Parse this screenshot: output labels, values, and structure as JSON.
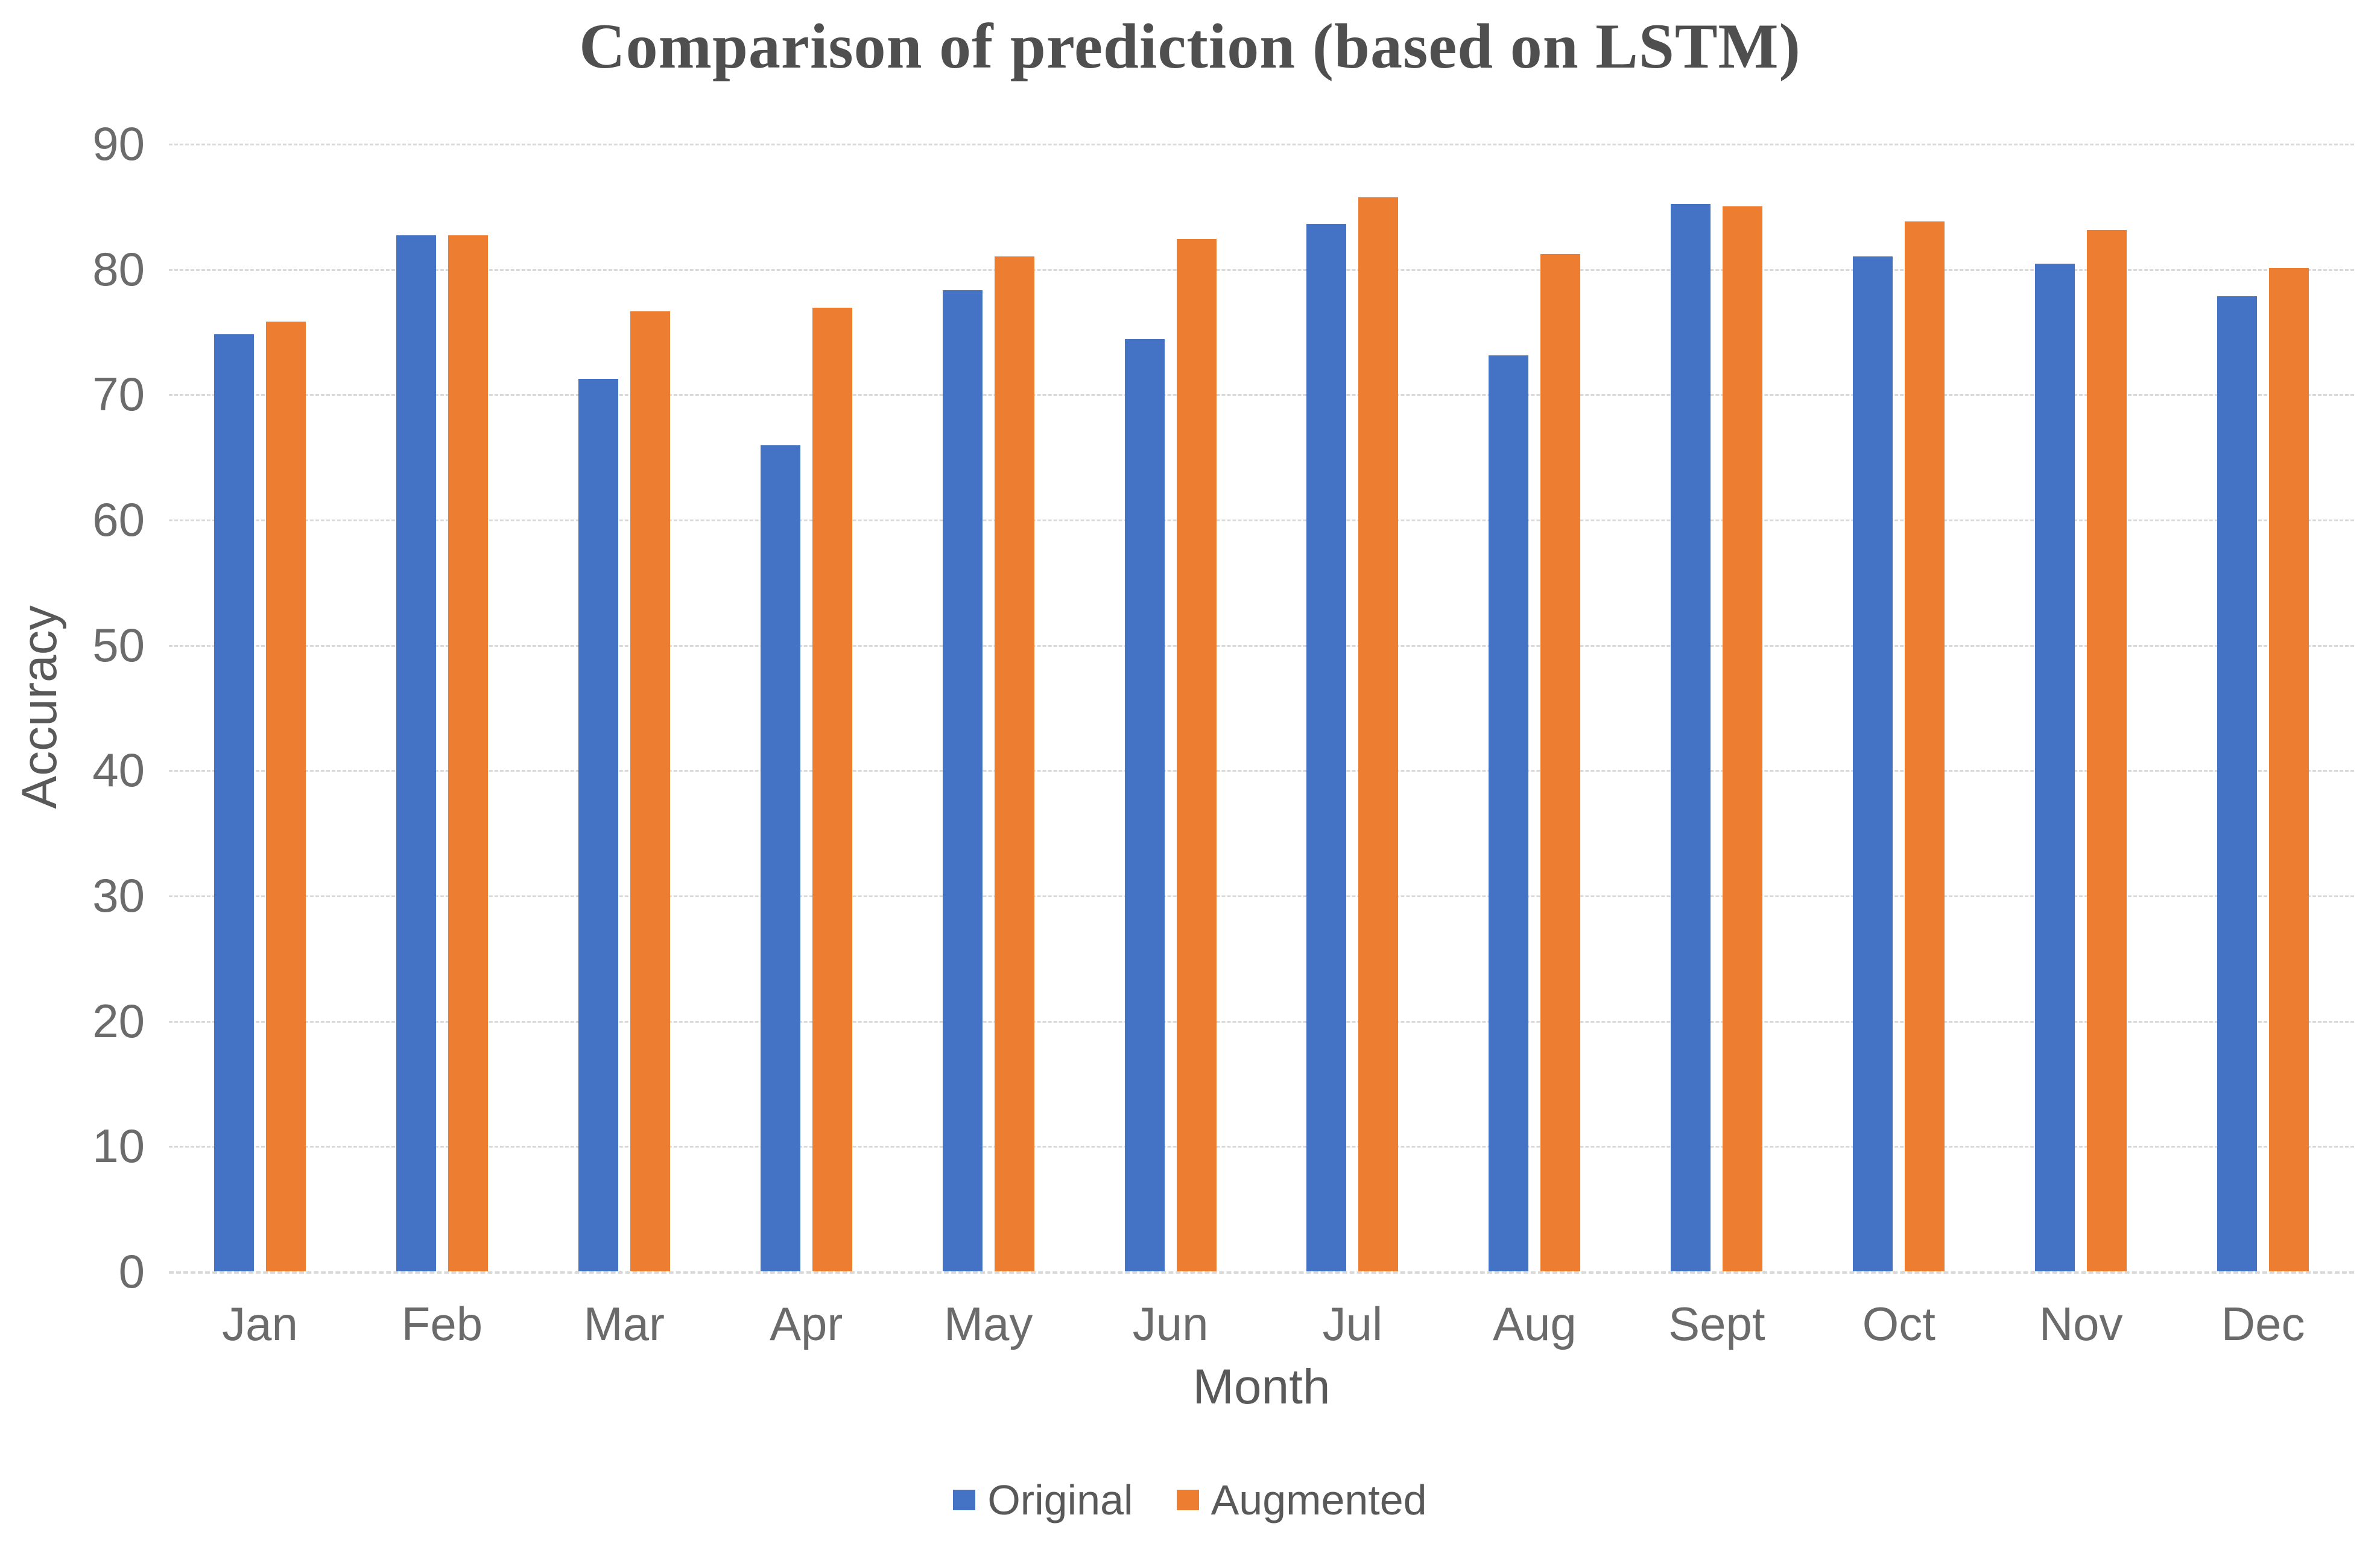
{
  "chart_data": {
    "type": "bar",
    "title": "Comparison of prediction (based on LSTM)",
    "xlabel": "Month",
    "ylabel": "Accuracy",
    "categories": [
      "Jan",
      "Feb",
      "Mar",
      "Apr",
      "May",
      "Jun",
      "Jul",
      "Aug",
      "Sept",
      "Oct",
      "Nov",
      "Dec"
    ],
    "series": [
      {
        "name": "Original",
        "color": "#4472C4",
        "values": [
          74.8,
          82.7,
          71.2,
          65.9,
          78.3,
          74.4,
          83.6,
          73.1,
          85.2,
          81.0,
          80.4,
          77.8
        ]
      },
      {
        "name": "Augmented",
        "color": "#ED7D31",
        "values": [
          75.8,
          82.7,
          76.6,
          76.9,
          81.0,
          82.4,
          85.7,
          81.2,
          85.0,
          83.8,
          83.1,
          80.1
        ]
      }
    ],
    "ylim": [
      0,
      90
    ],
    "yticks": [
      0,
      10,
      20,
      30,
      40,
      50,
      60,
      70,
      80,
      90
    ],
    "grid": "horizontal-dashed",
    "legend_position": "bottom"
  },
  "colors": {
    "background": "#FFFFFF",
    "title_text": "#4F4F4F",
    "axis_text": "#595959",
    "tick_text": "#6B6B6B",
    "gridline": "#D9D9D9",
    "series_original": "#4472C4",
    "series_augmented": "#ED7D31"
  }
}
